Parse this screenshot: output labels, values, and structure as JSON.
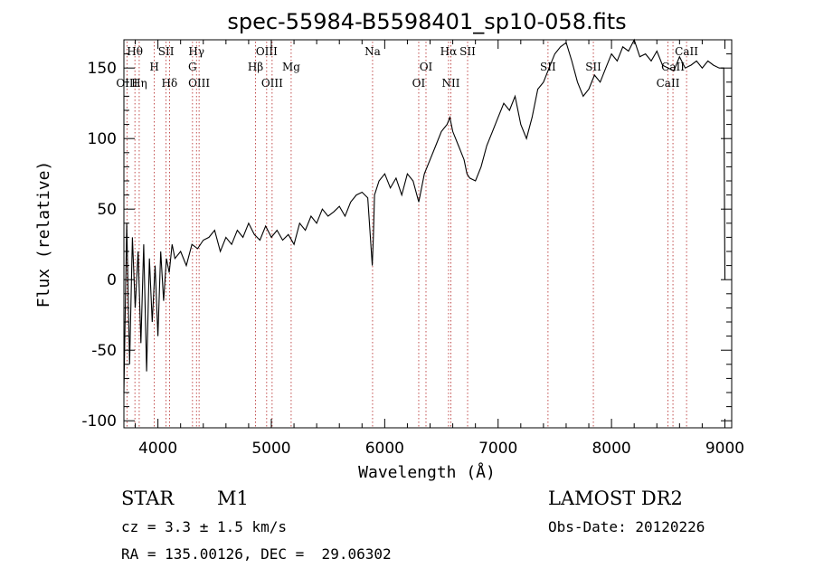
{
  "chart_data": {
    "type": "line",
    "title": "spec-55984-B5598401_sp10-058.fits",
    "xlabel": "Wavelength (Å)",
    "ylabel": "Flux (relative)",
    "xlim": [
      3700,
      9060
    ],
    "ylim": [
      -105,
      170
    ],
    "xticks": [
      4000,
      5000,
      6000,
      7000,
      8000,
      9000
    ],
    "yticks": [
      -100,
      -50,
      0,
      50,
      100,
      150
    ],
    "series": [
      {
        "color": "#000000",
        "x": [
          3700,
          3725,
          3750,
          3775,
          3800,
          3825,
          3850,
          3875,
          3900,
          3925,
          3950,
          3975,
          4000,
          4025,
          4050,
          4075,
          4100,
          4125,
          4150,
          4200,
          4250,
          4300,
          4350,
          4400,
          4450,
          4500,
          4550,
          4600,
          4650,
          4700,
          4750,
          4800,
          4850,
          4900,
          4950,
          5000,
          5050,
          5100,
          5150,
          5200,
          5250,
          5300,
          5350,
          5400,
          5450,
          5500,
          5550,
          5600,
          5650,
          5700,
          5750,
          5800,
          5850,
          5890,
          5900,
          5910,
          5950,
          6000,
          6050,
          6100,
          6150,
          6200,
          6250,
          6300,
          6350,
          6400,
          6450,
          6500,
          6550,
          6575,
          6600,
          6650,
          6700,
          6725,
          6750,
          6800,
          6850,
          6900,
          6950,
          7000,
          7050,
          7100,
          7150,
          7200,
          7250,
          7300,
          7350,
          7400,
          7450,
          7500,
          7550,
          7600,
          7650,
          7700,
          7750,
          7800,
          7850,
          7900,
          7950,
          8000,
          8050,
          8100,
          8150,
          8200,
          8250,
          8300,
          8350,
          8400,
          8450,
          8500,
          8550,
          8600,
          8650,
          8700,
          8750,
          8800,
          8850,
          8900,
          8950,
          8990,
          9000
        ],
        "y": [
          -80,
          40,
          -60,
          30,
          -20,
          20,
          -45,
          25,
          -65,
          15,
          -30,
          10,
          -40,
          20,
          -15,
          15,
          5,
          25,
          15,
          20,
          10,
          25,
          22,
          28,
          30,
          35,
          20,
          30,
          25,
          35,
          30,
          40,
          32,
          28,
          38,
          30,
          35,
          28,
          32,
          25,
          40,
          35,
          45,
          40,
          50,
          45,
          48,
          52,
          45,
          55,
          60,
          62,
          58,
          10,
          30,
          60,
          70,
          75,
          65,
          72,
          60,
          75,
          70,
          55,
          75,
          85,
          95,
          105,
          110,
          115,
          105,
          95,
          85,
          75,
          72,
          70,
          80,
          95,
          105,
          115,
          125,
          120,
          130,
          110,
          100,
          115,
          135,
          140,
          150,
          160,
          165,
          168,
          155,
          140,
          130,
          135,
          145,
          140,
          150,
          160,
          155,
          165,
          162,
          170,
          158,
          160,
          155,
          162,
          152,
          150,
          148,
          158,
          150,
          152,
          155,
          150,
          155,
          152,
          150,
          150,
          0
        ]
      }
    ],
    "lines": [
      {
        "label": "Hθ",
        "x": 3797,
        "row": 0
      },
      {
        "label": "OIII",
        "x": 3727,
        "row": 2
      },
      {
        "label": "Hη",
        "x": 3835,
        "row": 2
      },
      {
        "label": "SII",
        "x": 4072,
        "row": 0
      },
      {
        "label": "H",
        "x": 3968,
        "row": 1
      },
      {
        "label": "Hδ",
        "x": 4102,
        "row": 2
      },
      {
        "label": "Hγ",
        "x": 4340,
        "row": 0
      },
      {
        "label": "G",
        "x": 4305,
        "row": 1
      },
      {
        "label": "OIII",
        "x": 4363,
        "row": 2
      },
      {
        "label": "OIII",
        "x": 4959,
        "row": 0
      },
      {
        "label": "Hβ",
        "x": 4861,
        "row": 1
      },
      {
        "label": "Mg",
        "x": 5175,
        "row": 1
      },
      {
        "label": "OIII",
        "x": 5007,
        "row": 2
      },
      {
        "label": "Na",
        "x": 5893,
        "row": 0
      },
      {
        "label": "OI",
        "x": 6364,
        "row": 1
      },
      {
        "label": "OI",
        "x": 6300,
        "row": 2
      },
      {
        "label": "Hα",
        "x": 6563,
        "row": 0
      },
      {
        "label": "SII",
        "x": 6731,
        "row": 0
      },
      {
        "label": "NII",
        "x": 6583,
        "row": 2
      },
      {
        "label": "SII",
        "x": 7440,
        "row": 1
      },
      {
        "label": "SII",
        "x": 7840,
        "row": 1
      },
      {
        "label": "CaII",
        "x": 8662,
        "row": 0
      },
      {
        "label": "CaII",
        "x": 8542,
        "row": 1
      },
      {
        "label": "CaII",
        "x": 8498,
        "row": 2
      }
    ]
  },
  "info": {
    "object_class": "STAR",
    "subclass": "M1",
    "survey": "LAMOST DR2",
    "cz": "cz = 3.3 ± 1.5 km/s",
    "obs_date": "Obs-Date: 20120226",
    "coords": "RA = 135.00126, DEC =  29.06302"
  },
  "colors": {
    "spectrum": "#000000",
    "line_marker": "#b22222",
    "axes": "#000000",
    "background": "#ffffff"
  }
}
